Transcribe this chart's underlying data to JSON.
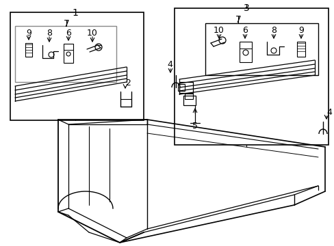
{
  "bg": "#ffffff",
  "lc": "#000000",
  "gray": "#888888",
  "figsize": [
    4.89,
    3.6
  ],
  "dpi": 100
}
